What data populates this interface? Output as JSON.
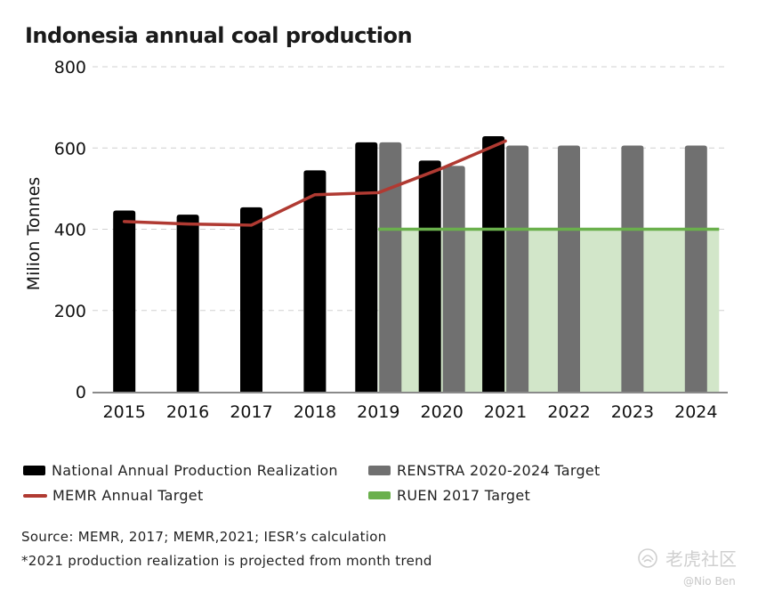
{
  "chart_data": {
    "type": "bar",
    "title": "Indonesia annual coal production",
    "ylabel": "Milion Tonnes",
    "xlabel": "",
    "ylim": [
      0,
      800
    ],
    "yticks": [
      0,
      200,
      400,
      600,
      800
    ],
    "categories": [
      "2015",
      "2016",
      "2017",
      "2018",
      "2019",
      "2020",
      "2021",
      "2022",
      "2023",
      "2024"
    ],
    "series": [
      {
        "name": "National Annual Production Realization",
        "kind": "bar",
        "color": "#000000",
        "values": [
          446,
          436,
          454,
          545,
          614,
          569,
          629,
          null,
          null,
          null
        ]
      },
      {
        "name": "RENSTRA 2020-2024 Target",
        "kind": "bar",
        "color": "#707070",
        "values": [
          null,
          null,
          null,
          null,
          614,
          556,
          606,
          606,
          606,
          606
        ]
      },
      {
        "name": "MEMR Annual Target",
        "kind": "line",
        "color": "#b03a32",
        "values": [
          419,
          413,
          410,
          485,
          490,
          550,
          617,
          null,
          null,
          null
        ]
      },
      {
        "name": "RUEN 2017 Target",
        "kind": "area",
        "color": "#6ab04c",
        "fill": "#d2e6c9",
        "from": "2019",
        "to": "2024",
        "value": 400
      }
    ],
    "grid": true,
    "legend": "bottom"
  },
  "legend": {
    "production": "National Annual Production Realization",
    "renstra": "RENSTRA 2020-2024 Target",
    "memr": "MEMR Annual Target",
    "ruen": "RUEN 2017 Target"
  },
  "notes": {
    "source": "Source: MEMR, 2017; MEMR,2021;  IESR’s calculation",
    "footnote": "*2021 production realization is projected from month trend"
  },
  "watermark": {
    "brand": "老虎社区",
    "handle": "@Nio Ben"
  }
}
